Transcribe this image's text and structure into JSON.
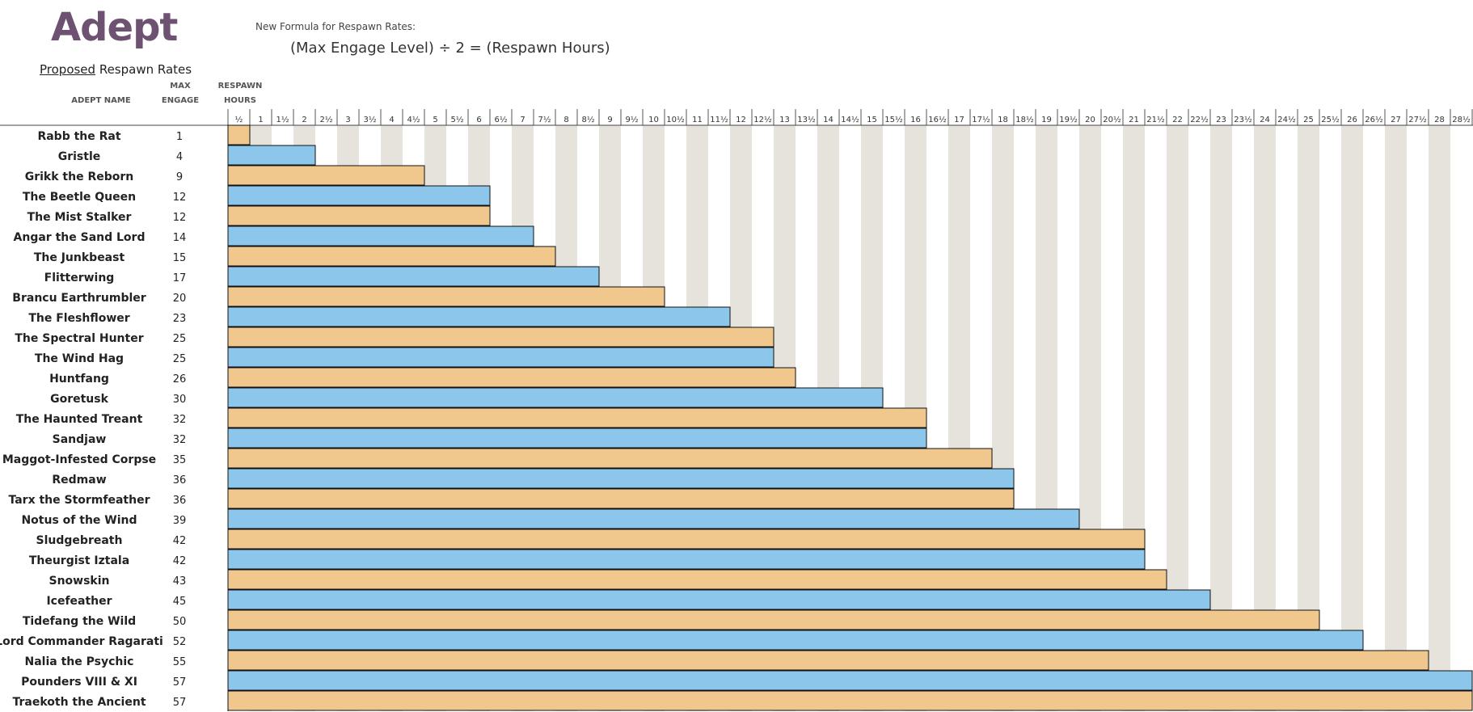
{
  "header": {
    "title": "Adept",
    "subtitle_underlined": "Proposed",
    "subtitle_rest": " Respawn Rates",
    "formula_label": "New Formula for Respawn Rates:",
    "formula": "(Max Engage Level) ÷ 2 = (Respawn Hours)",
    "col_name": "ADEPT NAME",
    "col_max_1": "MAX",
    "col_max_2": "ENGAGE",
    "col_resp_1": "RESPAWN",
    "col_resp_2": "HOURS"
  },
  "colors": {
    "bar_even": "#f0c88e",
    "bar_odd": "#8cc6ea",
    "stripe": "#e6e2dc",
    "bar_outline": "#111111"
  },
  "chart_data": {
    "type": "bar",
    "orientation": "horizontal",
    "categories": [
      "Rabb the Rat",
      "Gristle",
      "Grikk the Reborn",
      "The Beetle Queen",
      "The Mist Stalker",
      "Angar the Sand Lord",
      "The Junkbeast",
      "Flitterwing",
      "Brancu Earthrumbler",
      "The Fleshflower",
      "The Spectral Hunter",
      "The Wind Hag",
      "Huntfang",
      "Goretusk",
      "The Haunted Treant",
      "Sandjaw",
      "Maggot-Infested Corpse",
      "Redmaw",
      "Tarx the Stormfeather",
      "Notus of the Wind",
      "Sludgebreath",
      "Theurgist Iztala",
      "Snowskin",
      "Icefeather",
      "Tidefang the Wild",
      "Lord Commander Ragarati",
      "Nalia the Psychic",
      "Pounders VIII & XI",
      "Traekoth the Ancient"
    ],
    "max_engage": [
      1,
      4,
      9,
      12,
      12,
      14,
      15,
      17,
      20,
      23,
      25,
      25,
      26,
      30,
      32,
      32,
      35,
      36,
      36,
      39,
      42,
      42,
      43,
      45,
      50,
      52,
      55,
      57,
      57
    ],
    "values": [
      0.5,
      2,
      4.5,
      6,
      6,
      7,
      7.5,
      8.5,
      10,
      11.5,
      12.5,
      12.5,
      13,
      15,
      16,
      16,
      17.5,
      18,
      18,
      19.5,
      21,
      21,
      21.5,
      22.5,
      25,
      26,
      27.5,
      28.5,
      28.5
    ],
    "x_ticks": [
      "½",
      "1",
      "1½",
      "2",
      "2½",
      "3",
      "3½",
      "4",
      "4½",
      "5",
      "5½",
      "6",
      "6½",
      "7",
      "7½",
      "8",
      "8½",
      "9",
      "9½",
      "10",
      "10½",
      "11",
      "11½",
      "12",
      "12½",
      "13",
      "13½",
      "14",
      "14½",
      "15",
      "15½",
      "16",
      "16½",
      "17",
      "17½",
      "18",
      "18½",
      "19",
      "19½",
      "20",
      "20½",
      "21",
      "21½",
      "22",
      "22½",
      "23",
      "23½",
      "24",
      "24½",
      "25",
      "25½",
      "26",
      "26½",
      "27",
      "27½",
      "28",
      "28½"
    ],
    "xlim": [
      0,
      28.5
    ],
    "grid": "alternating column stripes"
  }
}
